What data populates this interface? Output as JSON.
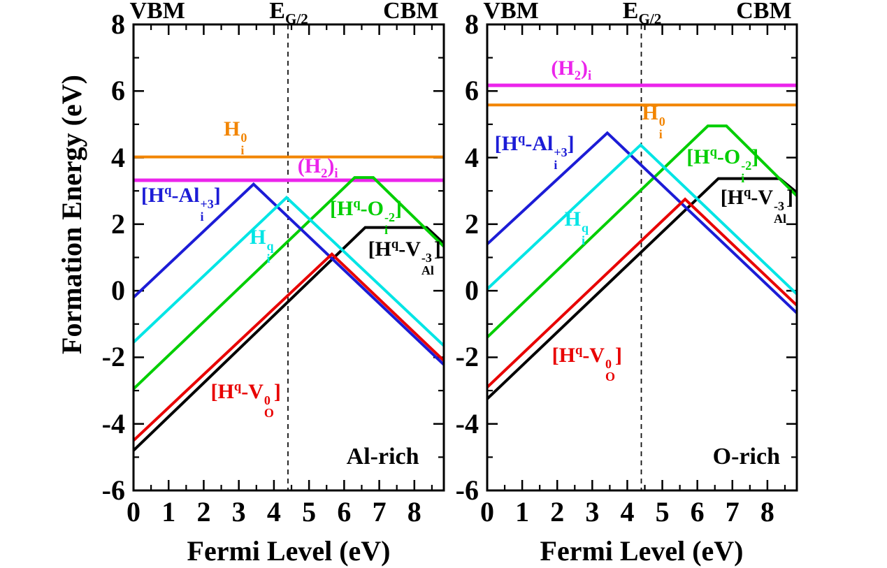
{
  "figure": {
    "ylabel": "Formation Energy (eV)",
    "background": "#ffffff",
    "axis_color": "#000000",
    "dashed_line_color": "#111111"
  },
  "chart_data": [
    {
      "type": "line",
      "panel": "Al-rich",
      "xlabel": "Fermi Level (eV)",
      "ylabel": "Formation Energy (eV)",
      "xlim": [
        0,
        8.84
      ],
      "ylim": [
        -6,
        8
      ],
      "xticks": [
        0,
        1,
        2,
        3,
        4,
        5,
        6,
        7,
        8
      ],
      "yticks": [
        -6,
        -4,
        -2,
        0,
        2,
        4,
        6,
        8
      ],
      "x_minor_step": 0.5,
      "y_minor_step": 1,
      "grid": false,
      "dashed_x": 4.4,
      "top_labels": [
        {
          "html": "VBM",
          "x": 0.68
        },
        {
          "html": "E<sub>G/2</sub>",
          "x": 4.42
        },
        {
          "html": "CBM",
          "x": 7.9
        }
      ],
      "corner_label": {
        "text": "Al-rich",
        "x": 7.1,
        "y": -5.0
      },
      "series": [
        {
          "id": "hi0",
          "name": "H_i^0",
          "color": "#F28500",
          "width": 4,
          "label_html": "H<span class='stk'><span>0</span><span>i</span></span>",
          "label_pos": [
            2.9,
            4.6
          ],
          "points": [
            [
              0,
              4.02
            ],
            [
              8.84,
              4.02
            ]
          ]
        },
        {
          "id": "h2i",
          "name": "(H2)_i",
          "color": "#EB24EB",
          "width": 5,
          "label_html": "(H<sub>2</sub>)<sub>i</sub>",
          "label_pos": [
            5.25,
            3.74
          ],
          "points": [
            [
              0,
              3.32
            ],
            [
              8.84,
              3.32
            ]
          ]
        },
        {
          "id": "hq-val",
          "name": "[Hq-V_Al^-3]",
          "color": "#000000",
          "width": 4,
          "label_html": "[H<sup>q</sup>-V<span class='stk'><span>-3</span><span>Al</span></span>]",
          "label_pos": [
            7.72,
            1.0
          ],
          "points": [
            [
              0,
              -4.8
            ],
            [
              6.6,
              1.9
            ],
            [
              8.35,
              1.9
            ],
            [
              8.84,
              1.42
            ]
          ]
        },
        {
          "id": "hq-oi",
          "name": "[Hq-O_i^-2]",
          "color": "#00CE00",
          "width": 4,
          "label_html": "[H<sup>q</sup>-O<span class='stk'><span>-2</span><span>i</span></span>]",
          "label_pos": [
            6.62,
            2.2
          ],
          "points": [
            [
              0,
              -2.95
            ],
            [
              6.3,
              3.4
            ],
            [
              6.83,
              3.4
            ],
            [
              8.84,
              1.33
            ]
          ]
        },
        {
          "id": "hq-ali",
          "name": "[Hq-Al_i^+3]",
          "color": "#1C1CD6",
          "width": 4,
          "label_html": "[H<sup>q</sup>-Al<span class='stk'><span>+3</span><span>i</span></span>]",
          "label_pos": [
            1.35,
            2.6
          ],
          "points": [
            [
              0,
              -0.2
            ],
            [
              3.42,
              3.2
            ],
            [
              8.84,
              -2.22
            ]
          ]
        },
        {
          "id": "hiq",
          "name": "H_i^q",
          "color": "#00E5E5",
          "width": 4,
          "label_html": "H<span class='stk'><span>q</span><span>i</span></span>",
          "label_pos": [
            3.65,
            1.35
          ],
          "points": [
            [
              0,
              -1.55
            ],
            [
              4.36,
              2.8
            ],
            [
              8.84,
              -1.65
            ]
          ]
        },
        {
          "id": "hq-vo",
          "name": "[Hq-V_O^0]",
          "color": "#E80000",
          "width": 4,
          "label_html": "[H<sup>q</sup>-V<span class='stk'><span>0</span><span>O</span></span>]",
          "label_pos": [
            3.2,
            -3.3
          ],
          "points": [
            [
              0,
              -4.5
            ],
            [
              5.65,
              1.1
            ],
            [
              8.84,
              -2.1
            ]
          ]
        }
      ]
    },
    {
      "type": "line",
      "panel": "O-rich",
      "xlabel": "Fermi Level (eV)",
      "ylabel": "Formation Energy (eV)",
      "xlim": [
        0,
        8.84
      ],
      "ylim": [
        -6,
        8
      ],
      "xticks": [
        0,
        1,
        2,
        3,
        4,
        5,
        6,
        7,
        8
      ],
      "yticks": [
        -6,
        -4,
        -2,
        0,
        2,
        4,
        6,
        8
      ],
      "x_minor_step": 0.5,
      "y_minor_step": 1,
      "grid": false,
      "dashed_x": 4.4,
      "top_labels": [
        {
          "html": "VBM",
          "x": 0.68
        },
        {
          "html": "E<sub>G/2</sub>",
          "x": 4.42
        },
        {
          "html": "CBM",
          "x": 7.9
        }
      ],
      "corner_label": {
        "text": "O-rich",
        "x": 7.4,
        "y": -5.0
      },
      "series": [
        {
          "id": "hi0",
          "name": "H_i^0",
          "color": "#F28500",
          "width": 4,
          "label_html": "H<span class='stk'><span>0</span><span>i</span></span>",
          "label_pos": [
            4.75,
            5.08
          ],
          "points": [
            [
              0,
              5.58
            ],
            [
              8.84,
              5.58
            ]
          ]
        },
        {
          "id": "h2i",
          "name": "(H2)_i",
          "color": "#EB24EB",
          "width": 5,
          "label_html": "(H<sub>2</sub>)<sub>i</sub>",
          "label_pos": [
            2.4,
            6.67
          ],
          "points": [
            [
              0,
              6.17
            ],
            [
              8.84,
              6.17
            ]
          ]
        },
        {
          "id": "hq-val",
          "name": "[Hq-V_Al^-3]",
          "color": "#000000",
          "width": 4,
          "label_html": "[H<sup>q</sup>-V<span class='stk'><span>-3</span><span>Al</span></span>]",
          "label_pos": [
            7.7,
            2.55
          ],
          "points": [
            [
              0,
              -3.25
            ],
            [
              6.6,
              3.37
            ],
            [
              8.35,
              3.37
            ],
            [
              8.84,
              2.95
            ]
          ]
        },
        {
          "id": "hq-oi",
          "name": "[Hq-O_i^-2]",
          "color": "#00CE00",
          "width": 4,
          "label_html": "[H<sup>q</sup>-O<span class='stk'><span>-2</span><span>i</span></span>]",
          "label_pos": [
            6.72,
            3.75
          ],
          "points": [
            [
              0,
              -1.4
            ],
            [
              6.3,
              4.95
            ],
            [
              6.83,
              4.95
            ],
            [
              8.84,
              2.85
            ]
          ]
        },
        {
          "id": "hq-ali",
          "name": "[Hq-Al_i^+3]",
          "color": "#1C1CD6",
          "width": 4,
          "label_html": "[H<sup>q</sup>-Al<span class='stk'><span>+3</span><span>i</span></span>]",
          "label_pos": [
            1.35,
            4.15
          ],
          "points": [
            [
              0,
              1.4
            ],
            [
              3.43,
              4.74
            ],
            [
              8.84,
              -0.67
            ]
          ]
        },
        {
          "id": "hiq",
          "name": "H_i^q",
          "color": "#00E5E5",
          "width": 4,
          "label_html": "H<span class='stk'><span>q</span><span>i</span></span>",
          "label_pos": [
            2.55,
            1.9
          ],
          "points": [
            [
              0,
              0.05
            ],
            [
              4.38,
              4.38
            ],
            [
              8.84,
              -0.1
            ]
          ]
        },
        {
          "id": "hq-vo",
          "name": "[Hq-V_O^0]",
          "color": "#E80000",
          "width": 4,
          "label_html": "[H<sup>q</sup>-V<span class='stk'><span>0</span><span>O</span></span>]",
          "label_pos": [
            2.85,
            -2.2
          ],
          "points": [
            [
              0,
              -2.9
            ],
            [
              5.65,
              2.75
            ],
            [
              8.84,
              -0.44
            ]
          ]
        }
      ]
    }
  ]
}
